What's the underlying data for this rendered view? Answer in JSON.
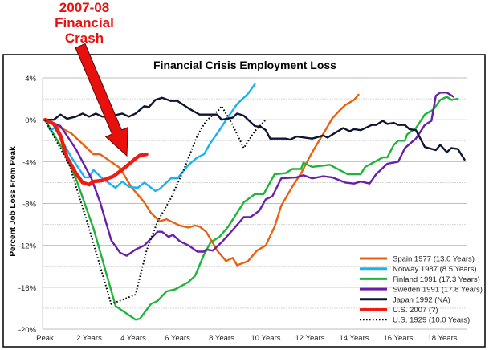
{
  "annotation": {
    "lines": [
      "2007-08",
      "Financial",
      "Crash"
    ],
    "color": "#e8100c"
  },
  "chart_data": {
    "type": "line",
    "title": "Financial Crisis Employment Loss",
    "xlabel": "",
    "ylabel": "Percent Job Loss From Peak",
    "xlim": [
      0,
      19.1
    ],
    "ylim": [
      -20,
      4
    ],
    "x_ticks": [
      {
        "v": 0,
        "label": "Peak"
      },
      {
        "v": 2,
        "label": "2 Years"
      },
      {
        "v": 4,
        "label": "4 Years"
      },
      {
        "v": 6,
        "label": "6 Years"
      },
      {
        "v": 8,
        "label": "8 Years"
      },
      {
        "v": 10,
        "label": "10 Years"
      },
      {
        "v": 12,
        "label": "12 Years"
      },
      {
        "v": 14,
        "label": "14 Years"
      },
      {
        "v": 16,
        "label": "16 Years"
      },
      {
        "v": 18,
        "label": "18 Years"
      }
    ],
    "y_ticks": [
      {
        "v": 4,
        "label": "4%"
      },
      {
        "v": 0,
        "label": "0%"
      },
      {
        "v": -4,
        "label": "-4%"
      },
      {
        "v": -8,
        "label": "-8%"
      },
      {
        "v": -12,
        "label": "-12%"
      },
      {
        "v": -16,
        "label": "-16%"
      },
      {
        "v": -20,
        "label": "-20%"
      }
    ],
    "grid": true,
    "legend_position": "bottom-right",
    "series": [
      {
        "name": "Spain 1977 (13.0 Years)",
        "color": "#e8620f",
        "dash": false,
        "points": [
          [
            0,
            0
          ],
          [
            1.2,
            -1.3
          ],
          [
            2.2,
            -3.3
          ],
          [
            2.5,
            -3.3
          ],
          [
            3.4,
            -4.6
          ],
          [
            3.9,
            -6.4
          ],
          [
            4.5,
            -7.9
          ],
          [
            4.8,
            -8.9
          ],
          [
            5.2,
            -9.7
          ],
          [
            5.5,
            -9.5
          ],
          [
            6.1,
            -10.1
          ],
          [
            6.5,
            -10.3
          ],
          [
            6.8,
            -10.1
          ],
          [
            7.0,
            -10.2
          ],
          [
            7.3,
            -10.7
          ],
          [
            7.8,
            -12.5
          ],
          [
            8.2,
            -13.5
          ],
          [
            8.5,
            -13.2
          ],
          [
            8.7,
            -13.9
          ],
          [
            9.2,
            -13.5
          ],
          [
            9.6,
            -12.5
          ],
          [
            10.0,
            -12.0
          ],
          [
            10.4,
            -10.2
          ],
          [
            10.7,
            -8.2
          ],
          [
            11.2,
            -6.4
          ],
          [
            11.6,
            -5.1
          ],
          [
            12.1,
            -3.1
          ],
          [
            12.7,
            -1.0
          ],
          [
            13.0,
            0.1
          ],
          [
            13.3,
            0.8
          ],
          [
            13.6,
            1.4
          ],
          [
            14.0,
            1.9
          ],
          [
            14.2,
            2.4
          ]
        ]
      },
      {
        "name": "Norway 1987 (8.5 Years)",
        "color": "#1ab2ee",
        "dash": false,
        "points": [
          [
            0,
            0
          ],
          [
            0.24,
            -1.0
          ],
          [
            0.45,
            -0.8
          ],
          [
            1.2,
            -3.6
          ],
          [
            1.8,
            -5.5
          ],
          [
            2.0,
            -5.5
          ],
          [
            2.2,
            -4.8
          ],
          [
            2.6,
            -5.6
          ],
          [
            3.2,
            -6.5
          ],
          [
            3.5,
            -5.9
          ],
          [
            3.8,
            -6.4
          ],
          [
            4.2,
            -6.5
          ],
          [
            4.5,
            -6.0
          ],
          [
            5.0,
            -6.8
          ],
          [
            5.2,
            -6.6
          ],
          [
            5.7,
            -5.6
          ],
          [
            6.0,
            -5.6
          ],
          [
            6.5,
            -4.3
          ],
          [
            6.9,
            -3.6
          ],
          [
            7.2,
            -3.3
          ],
          [
            7.5,
            -2.2
          ],
          [
            7.9,
            -1.0
          ],
          [
            8.3,
            0.3
          ],
          [
            8.7,
            1.5
          ],
          [
            9.2,
            2.5
          ],
          [
            9.5,
            3.4
          ]
        ]
      },
      {
        "name": "Finland 1991 (17.3 Years)",
        "color": "#1fb43a",
        "dash": false,
        "points": [
          [
            0,
            0
          ],
          [
            0.8,
            -2.8
          ],
          [
            1.4,
            -5.6
          ],
          [
            2.2,
            -10.4
          ],
          [
            3.2,
            -17.8
          ],
          [
            4.1,
            -19.1
          ],
          [
            4.3,
            -19.0
          ],
          [
            4.8,
            -17.6
          ],
          [
            5.1,
            -17.3
          ],
          [
            5.5,
            -16.4
          ],
          [
            5.9,
            -16.2
          ],
          [
            6.5,
            -15.5
          ],
          [
            6.8,
            -14.9
          ],
          [
            7.2,
            -12.9
          ],
          [
            7.5,
            -11.7
          ],
          [
            7.9,
            -11.2
          ],
          [
            8.3,
            -10.2
          ],
          [
            9.0,
            -7.9
          ],
          [
            9.5,
            -7.1
          ],
          [
            9.9,
            -7.1
          ],
          [
            10.4,
            -5.2
          ],
          [
            10.9,
            -5.1
          ],
          [
            11.2,
            -4.7
          ],
          [
            11.6,
            -4.7
          ],
          [
            11.7,
            -4.1
          ],
          [
            12.1,
            -4.5
          ],
          [
            12.9,
            -4.3
          ],
          [
            13.7,
            -5.2
          ],
          [
            14.3,
            -5.2
          ],
          [
            14.5,
            -4.5
          ],
          [
            15.3,
            -3.6
          ],
          [
            15.5,
            -3.6
          ],
          [
            15.8,
            -2.4
          ],
          [
            16.0,
            -2.0
          ],
          [
            16.3,
            -2.0
          ],
          [
            16.4,
            -1.4
          ],
          [
            16.8,
            -0.8
          ],
          [
            17.2,
            0.5
          ],
          [
            17.6,
            1.0
          ],
          [
            17.9,
            1.9
          ],
          [
            18.2,
            2.2
          ],
          [
            18.4,
            1.9
          ],
          [
            18.7,
            2.0
          ]
        ]
      },
      {
        "name": "Sweden 1991 (17.8 Years)",
        "color": "#6a1fa8",
        "dash": false,
        "points": [
          [
            0,
            0
          ],
          [
            0.7,
            -0.6
          ],
          [
            1.4,
            -2.8
          ],
          [
            2.1,
            -5.6
          ],
          [
            2.5,
            -7.9
          ],
          [
            3.0,
            -11.5
          ],
          [
            3.4,
            -12.7
          ],
          [
            3.7,
            -13.0
          ],
          [
            4.1,
            -12.4
          ],
          [
            4.5,
            -12.0
          ],
          [
            5.1,
            -10.7
          ],
          [
            5.3,
            -10.7
          ],
          [
            5.6,
            -11.2
          ],
          [
            5.8,
            -11.0
          ],
          [
            6.1,
            -11.6
          ],
          [
            6.5,
            -12.0
          ],
          [
            6.9,
            -12.6
          ],
          [
            7.2,
            -12.6
          ],
          [
            7.3,
            -12.4
          ],
          [
            7.6,
            -12.5
          ],
          [
            8.0,
            -11.7
          ],
          [
            8.6,
            -10.3
          ],
          [
            9.0,
            -9.3
          ],
          [
            9.3,
            -9.3
          ],
          [
            9.7,
            -8.7
          ],
          [
            10.0,
            -7.6
          ],
          [
            10.3,
            -7.3
          ],
          [
            10.7,
            -5.6
          ],
          [
            11.4,
            -5.5
          ],
          [
            11.7,
            -5.3
          ],
          [
            12.1,
            -5.6
          ],
          [
            12.6,
            -5.4
          ],
          [
            13.0,
            -5.5
          ],
          [
            13.6,
            -6.0
          ],
          [
            14.0,
            -6.1
          ],
          [
            14.3,
            -5.9
          ],
          [
            14.7,
            -6.1
          ],
          [
            15.0,
            -5.2
          ],
          [
            15.5,
            -4.2
          ],
          [
            16.0,
            -4.0
          ],
          [
            16.3,
            -2.7
          ],
          [
            16.8,
            -1.8
          ],
          [
            17.2,
            -0.5
          ],
          [
            17.5,
            -0.1
          ],
          [
            17.7,
            2.3
          ],
          [
            17.9,
            2.6
          ],
          [
            18.2,
            2.6
          ],
          [
            18.5,
            2.2
          ]
        ]
      },
      {
        "name": "Japan 1992 (NA)",
        "color": "#0d1533",
        "dash": false,
        "points": [
          [
            0,
            0
          ],
          [
            0.4,
            0
          ],
          [
            0.7,
            0.5
          ],
          [
            1.0,
            0.1
          ],
          [
            1.4,
            0.3
          ],
          [
            1.7,
            0.6
          ],
          [
            2.0,
            0.3
          ],
          [
            2.3,
            0.6
          ],
          [
            2.6,
            0.3
          ],
          [
            3.1,
            0.4
          ],
          [
            3.5,
            0.6
          ],
          [
            3.8,
            0.3
          ],
          [
            4.1,
            0.6
          ],
          [
            4.5,
            1.3
          ],
          [
            4.7,
            1.2
          ],
          [
            5.0,
            1.9
          ],
          [
            5.3,
            2.1
          ],
          [
            5.7,
            1.8
          ],
          [
            6.0,
            1.8
          ],
          [
            6.5,
            1.1
          ],
          [
            7.0,
            0.5
          ],
          [
            7.4,
            0.5
          ],
          [
            7.8,
            0.5
          ],
          [
            8.0,
            0
          ],
          [
            8.5,
            0.2
          ],
          [
            8.7,
            0.6
          ],
          [
            9.0,
            0.4
          ],
          [
            9.5,
            -0.6
          ],
          [
            9.8,
            -0.7
          ],
          [
            10.0,
            -1.0
          ],
          [
            10.2,
            -1.8
          ],
          [
            10.9,
            -1.8
          ],
          [
            11.1,
            -1.9
          ],
          [
            11.4,
            -1.6
          ],
          [
            12.1,
            -1.8
          ],
          [
            12.6,
            -1.5
          ],
          [
            12.8,
            -1.7
          ],
          [
            13.1,
            -1.3
          ],
          [
            13.5,
            -0.8
          ],
          [
            13.8,
            -1.1
          ],
          [
            14.0,
            -0.9
          ],
          [
            14.3,
            -1.0
          ],
          [
            14.8,
            -0.5
          ],
          [
            15.0,
            -0.5
          ],
          [
            15.3,
            -0.1
          ],
          [
            15.5,
            -0.4
          ],
          [
            15.8,
            -0.3
          ],
          [
            16.0,
            -0.5
          ],
          [
            16.3,
            -0.5
          ],
          [
            16.5,
            -0.9
          ],
          [
            16.8,
            -1.0
          ],
          [
            17.2,
            -2.6
          ],
          [
            17.7,
            -2.9
          ],
          [
            17.9,
            -2.4
          ],
          [
            18.2,
            -3.1
          ],
          [
            18.4,
            -2.7
          ],
          [
            18.7,
            -2.8
          ],
          [
            19.0,
            -3.8
          ]
        ]
      },
      {
        "name": "U.S. 2007 (?)",
        "color": "#ee1c12",
        "dash": false,
        "thick": true,
        "points": [
          [
            0,
            0
          ],
          [
            0.4,
            -0.4
          ],
          [
            0.7,
            -1.5
          ],
          [
            1.0,
            -3.6
          ],
          [
            1.4,
            -5.1
          ],
          [
            1.7,
            -6.0
          ],
          [
            2.0,
            -6.2
          ],
          [
            2.2,
            -5.9
          ],
          [
            2.6,
            -5.8
          ],
          [
            3.1,
            -5.4
          ],
          [
            3.6,
            -4.6
          ],
          [
            4.1,
            -3.7
          ],
          [
            4.3,
            -3.4
          ],
          [
            4.6,
            -3.3
          ]
        ]
      },
      {
        "name": "U.S. 1929 (10.0 Years)",
        "color": "#000000",
        "dash": true,
        "points": [
          [
            0,
            0
          ],
          [
            1.1,
            -4.3
          ],
          [
            1.9,
            -9.7
          ],
          [
            3.0,
            -17.6
          ],
          [
            3.5,
            -17.2
          ],
          [
            4.1,
            -16.7
          ],
          [
            4.6,
            -12.5
          ],
          [
            5.1,
            -9.7
          ],
          [
            5.7,
            -7.5
          ],
          [
            6.3,
            -4.7
          ],
          [
            6.9,
            -1.5
          ],
          [
            7.3,
            -0.1
          ],
          [
            7.9,
            1.0
          ],
          [
            8.0,
            1.3
          ],
          [
            8.5,
            -0.5
          ],
          [
            9.0,
            -2.7
          ],
          [
            9.5,
            -1.1
          ],
          [
            10.0,
            0
          ]
        ]
      }
    ]
  }
}
